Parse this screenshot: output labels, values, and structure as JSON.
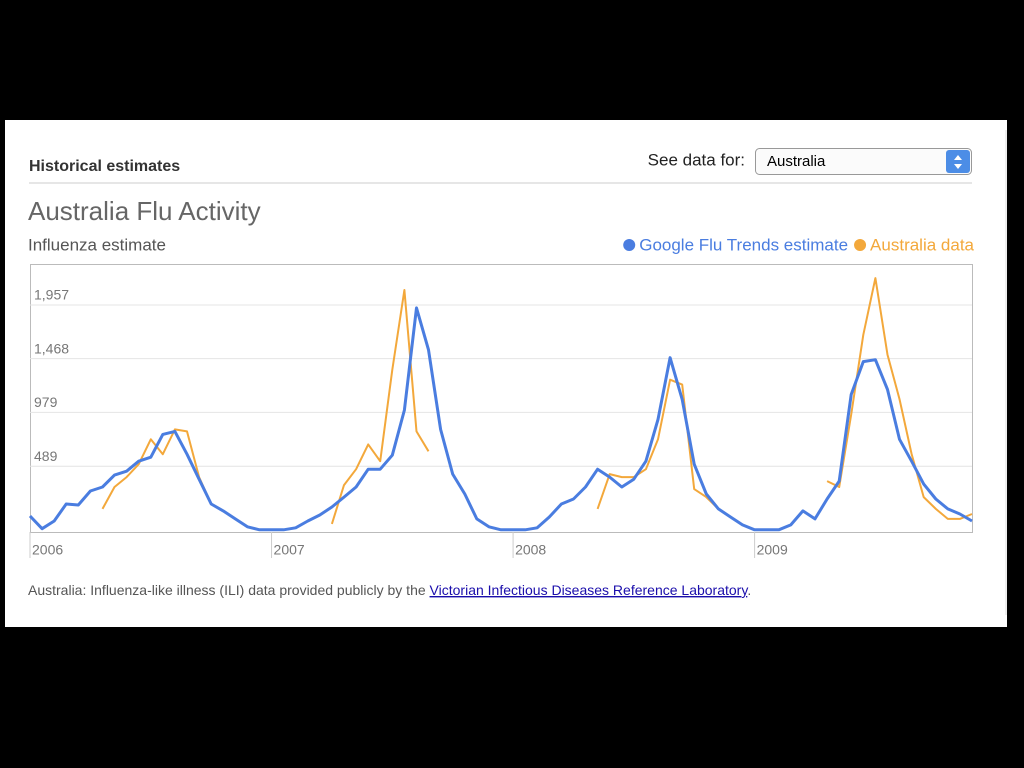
{
  "header": {
    "title": "Historical estimates",
    "select_label": "See data for:",
    "select_value": "Australia"
  },
  "chart_data": {
    "type": "line",
    "title": "Australia Flu Activity",
    "y_label": "Influenza estimate",
    "x": [
      2006,
      2006.05,
      2006.1,
      2006.15,
      2006.2,
      2006.25,
      2006.3,
      2006.35,
      2006.4,
      2006.45,
      2006.5,
      2006.55,
      2006.6,
      2006.65,
      2006.7,
      2006.75,
      2006.8,
      2006.85,
      2006.9,
      2006.95,
      2007,
      2007.05,
      2007.1,
      2007.15,
      2007.2,
      2007.25,
      2007.3,
      2007.35,
      2007.4,
      2007.45,
      2007.5,
      2007.55,
      2007.6,
      2007.65,
      2007.7,
      2007.75,
      2007.8,
      2007.85,
      2007.9,
      2007.95,
      2008,
      2008.05,
      2008.1,
      2008.15,
      2008.2,
      2008.25,
      2008.3,
      2008.35,
      2008.4,
      2008.45,
      2008.5,
      2008.55,
      2008.6,
      2008.65,
      2008.7,
      2008.75,
      2008.8,
      2008.85,
      2008.9,
      2008.95,
      2009,
      2009.05,
      2009.1,
      2009.15,
      2009.2,
      2009.25,
      2009.3,
      2009.35,
      2009.4,
      2009.45,
      2009.5,
      2009.55,
      2009.6,
      2009.65,
      2009.7,
      2009.75,
      2009.8,
      2009.85,
      2009.9
    ],
    "series": [
      {
        "name": "Google Flu Trends estimate",
        "color": "#4a7de0",
        "values": [
          36,
          -80,
          -10,
          145,
          136,
          263,
          300,
          408,
          444,
          535,
          571,
          779,
          806,
          598,
          371,
          145,
          82,
          9,
          -63,
          -90,
          -90,
          -90,
          -72,
          -10,
          45,
          118,
          208,
          300,
          462,
          462,
          589,
          1000,
          1930,
          1549,
          824,
          417,
          236,
          9,
          -63,
          -90,
          -90,
          -90,
          -72,
          27,
          145,
          190,
          300,
          462,
          390,
          300,
          371,
          535,
          915,
          1477,
          1096,
          507,
          236,
          100,
          27,
          -45,
          -90,
          -90,
          -90,
          -45,
          82,
          9,
          190,
          353,
          1142,
          1441,
          1459,
          1187,
          734,
          535,
          326,
          190,
          100,
          54,
          -10
        ]
      },
      {
        "name": "Australia data",
        "color": "#f3a83b",
        "values": [
          null,
          null,
          null,
          null,
          null,
          null,
          100,
          300,
          390,
          507,
          734,
          598,
          824,
          806,
          390,
          145,
          null,
          null,
          null,
          null,
          null,
          null,
          null,
          null,
          null,
          -36,
          317,
          462,
          688,
          535,
          1368,
          2093,
          806,
          625,
          null,
          null,
          null,
          null,
          null,
          null,
          null,
          null,
          null,
          null,
          null,
          null,
          null,
          100,
          417,
          390,
          390,
          462,
          734,
          1277,
          1232,
          281,
          208,
          100,
          27,
          null,
          null,
          null,
          null,
          null,
          null,
          null,
          353,
          300,
          960,
          1685,
          2202,
          1504,
          1100,
          600,
          208,
          100,
          9,
          9,
          54
        ]
      }
    ],
    "xlim": [
      2006,
      2009.9
    ],
    "xticks": [
      2006,
      2007,
      2008,
      2009
    ],
    "ylim": [
      -110,
      2330
    ],
    "yticks": [
      489,
      979,
      {
        "value": 1468,
        "label": "1,468"
      },
      {
        "value": 1957,
        "label": "1,957"
      }
    ],
    "grid": true,
    "legend": "top-right"
  },
  "footer": {
    "text": "Australia: Influenza-like illness (ILI) data provided publicly by the ",
    "link": "Victorian Infectious Diseases Reference Laboratory",
    "end": "."
  }
}
